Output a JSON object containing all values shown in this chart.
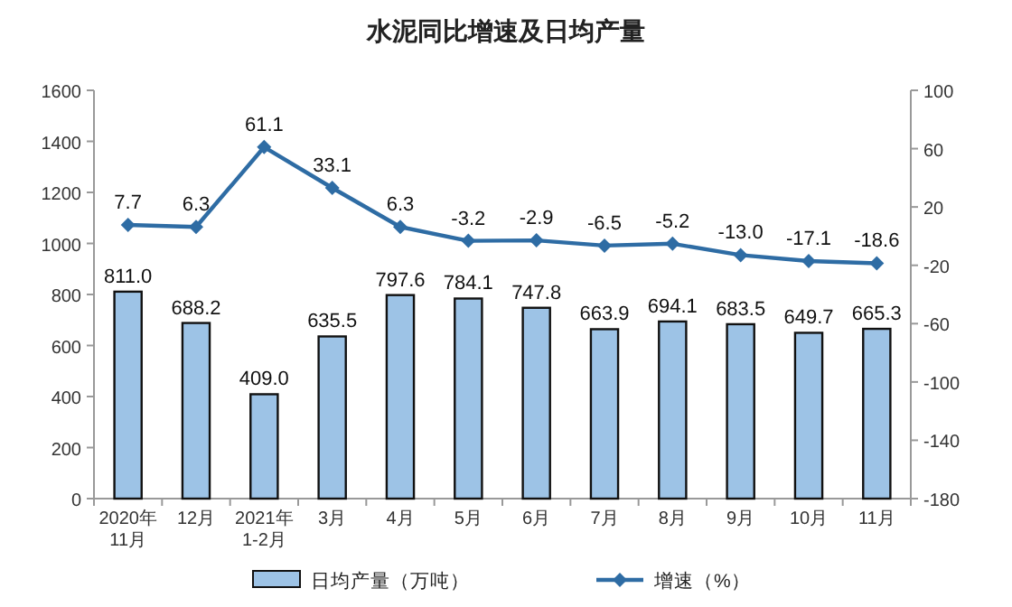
{
  "chart_data": {
    "type": "bar",
    "title": "水泥同比增速及日均产量",
    "categories": [
      "2020年\n11月",
      "12月",
      "2021年\n1-2月",
      "3月",
      "4月",
      "5月",
      "6月",
      "7月",
      "8月",
      "9月",
      "10月",
      "11月"
    ],
    "series": [
      {
        "name": "日均产量（万吨）",
        "color": "#9dc3e6",
        "values": [
          811.0,
          688.2,
          409.0,
          635.5,
          797.6,
          784.1,
          747.8,
          663.9,
          694.1,
          683.5,
          649.7,
          665.3
        ],
        "value_labels": [
          "811.0",
          "688.2",
          "409.0",
          "635.5",
          "797.6",
          "784.1",
          "747.8",
          "663.9",
          "694.1",
          "683.5",
          "649.7",
          "665.3"
        ]
      },
      {
        "name": "增速（%）",
        "type": "line",
        "axis": "y2",
        "color": "#2e6ca4",
        "marker": "diamond",
        "values": [
          7.7,
          6.3,
          61.1,
          33.1,
          6.3,
          -3.2,
          -2.9,
          -6.5,
          -5.2,
          -13.0,
          -17.1,
          -18.6
        ],
        "value_labels": [
          "7.7",
          "6.3",
          "61.1",
          "33.1",
          "6.3",
          "-3.2",
          "-2.9",
          "-6.5",
          "-5.2",
          "-13.0",
          "-17.1",
          "-18.6"
        ]
      }
    ],
    "ylim": [
      0,
      1600
    ],
    "yticks": [
      0,
      200,
      400,
      600,
      800,
      1000,
      1200,
      1400,
      1600
    ],
    "y2lim": [
      -180,
      100
    ],
    "y2ticks": [
      -180,
      -140,
      -100,
      -60,
      -20,
      20,
      60,
      100
    ],
    "legend": "bottom"
  }
}
